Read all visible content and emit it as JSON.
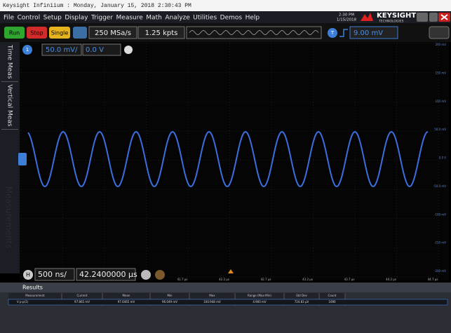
{
  "window_title": "Keysight Infiniium : Monday, January 15, 2018 2:30:43 PM",
  "menu": [
    "File",
    "Control",
    "Setup",
    "Display",
    "Trigger",
    "Measure",
    "Math",
    "Analyze",
    "Utilities",
    "Demos",
    "Help"
  ],
  "clock": {
    "time": "2:30 PM",
    "date": "1/15/2018"
  },
  "brand": {
    "name": "KEYSIGHT",
    "sub": "TECHNOLOGIES"
  },
  "toolbar": {
    "run": "Run",
    "stop": "Stop",
    "single": "Single",
    "sample_rate": "250 MSa/s",
    "points": "1.25 kpts",
    "trigger_label": "T",
    "trigger_level": "9.00 mV"
  },
  "side_tabs": [
    "Time Meas",
    "Vertical Meas"
  ],
  "watermark": "Measurements",
  "channel": {
    "number": "1",
    "scale": "50.0 mV/",
    "offset": "0.0 V"
  },
  "volt_labels": [
    "200 mV",
    "150 mV",
    "100 mV",
    "50.0 mV",
    "0.0 V",
    "-50.0 mV",
    "-100 mV",
    "-150 mV",
    "-200 mV"
  ],
  "horizontal": {
    "label": "H",
    "scale": "500 ns/",
    "position": "42.2400000 µs"
  },
  "time_labels": [
    "41.7 µs",
    "42.2 µs",
    "42.7 µs",
    "43.2 µs",
    "43.7 µs",
    "44.2 µs",
    "44.7 µs"
  ],
  "results": {
    "title": "Results",
    "columns": [
      "Measurement",
      "Current",
      "Mean",
      "Min",
      "Max",
      "Range (Max-Min)",
      "Std Dev",
      "Count"
    ],
    "rows": [
      [
        "V p-p(1)",
        "97.865 mV",
        "97.6465 mV",
        "96.049 mV",
        "100.948 mV",
        "4.900 mV",
        "724.83 µV",
        "1690"
      ]
    ]
  }
}
